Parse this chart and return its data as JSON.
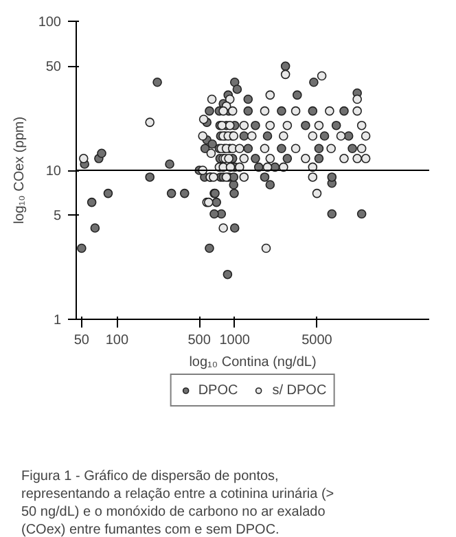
{
  "chart_data": {
    "type": "scatter",
    "xlabel": "log₁₀ Contina (ng/dL)",
    "ylabel": "log₁₀ COex (ppm)",
    "log": "xy",
    "xlim": [
      45,
      45000
    ],
    "ylim": [
      1,
      100
    ],
    "xticks": [
      50,
      100,
      500,
      1000,
      5000
    ],
    "yticks": [
      1,
      5,
      10,
      50,
      100
    ],
    "grid": false,
    "legend": "bottom",
    "marker": "circle",
    "ref_lines": [
      {
        "axis": "y",
        "value": 10,
        "color": "#000000"
      }
    ],
    "annotations": [
      "Figura 1 - Gráfico de dispersão de pontos, representando a relação entre a cotinina urinária (> 50 ng/dL) e o monóxido de carbono no ar exalado (COex) entre fumantes com e sem DPOC."
    ],
    "series": [
      {
        "name": "DPOC",
        "color": "#707070",
        "x": [
          50,
          53,
          61,
          65,
          70,
          74,
          84,
          220,
          190,
          280,
          290,
          375,
          500,
          555,
          560,
          580,
          580,
          610,
          610,
          645,
          870,
          1000,
          770,
          6700,
          12000,
          670,
          680,
          700,
          670,
          6700,
          980,
          990,
          2000,
          2700,
          4700,
          1000,
          1050,
          880,
          1300,
          3400,
          11000,
          800,
          740,
          890,
          1300,
          2500,
          4600,
          8500,
          750,
          850,
          1000,
          1500,
          4000,
          7300,
          760,
          830,
          950,
          1200,
          1900,
          5800,
          9300,
          740,
          820,
          910,
          1300,
          2500,
          5200,
          10000,
          750,
          960,
          1500,
          2800,
          5200,
          1000,
          1600,
          2200,
          760,
          800,
          890,
          980,
          1800,
          6700
        ],
        "values": [
          3.0,
          11,
          6.1,
          4.1,
          12,
          13,
          7.0,
          39,
          9.0,
          11,
          7.0,
          7.0,
          10,
          9.0,
          14,
          21,
          16,
          25,
          3.0,
          15,
          2.0,
          4.1,
          5.1,
          5.1,
          5.1,
          7.0,
          7.0,
          6.1,
          5.1,
          8.2,
          8.0,
          7.0,
          8.0,
          50,
          39,
          39,
          35,
          32,
          30,
          32,
          33,
          28,
          25,
          25,
          25,
          25,
          25,
          25,
          20,
          20,
          20,
          20,
          20,
          20,
          17,
          17,
          17,
          17,
          17,
          17,
          17,
          14,
          14,
          14,
          14,
          14,
          14,
          14,
          12,
          12,
          12,
          12,
          12,
          10.5,
          10.5,
          10.5,
          9,
          9,
          9,
          9,
          9,
          9
        ]
      },
      {
        "name": "s/ DPOC",
        "color": "#e8e8e8",
        "x": [
          52,
          190,
          535,
          535,
          545,
          580,
          620,
          640,
          630,
          1850,
          800,
          600,
          5000,
          2700,
          5500,
          910,
          2000,
          11000,
          850,
          800,
          960,
          1800,
          3300,
          6400,
          11000,
          780,
          910,
          1200,
          2000,
          2800,
          5200,
          12000,
          800,
          880,
          980,
          1400,
          2600,
          4600,
          8000,
          13000,
          770,
          850,
          960,
          1100,
          1800,
          3300,
          6600,
          12000,
          800,
          830,
          890,
          1200,
          2000,
          4000,
          8500,
          11000,
          13000,
          740,
          800,
          920,
          1100,
          1900,
          2600,
          4600,
          620,
          660,
          850,
          1200,
          4600
        ],
        "values": [
          12,
          21,
          17,
          10,
          22,
          6.1,
          9.0,
          30,
          13,
          3.0,
          4.1,
          6.1,
          7.0,
          44,
          43,
          30,
          32,
          30,
          27,
          25,
          25,
          25,
          25,
          25,
          25,
          20,
          20,
          20,
          20,
          20,
          20,
          20,
          17,
          17,
          17,
          17,
          17,
          17,
          17,
          17,
          14,
          14,
          14,
          14,
          14,
          14,
          14,
          14,
          12,
          12,
          12,
          12,
          12,
          12,
          12,
          12,
          12,
          10.5,
          10.5,
          10.5,
          10.5,
          10.5,
          10.5,
          10.5,
          9,
          9,
          9,
          9,
          9
        ]
      }
    ]
  }
}
